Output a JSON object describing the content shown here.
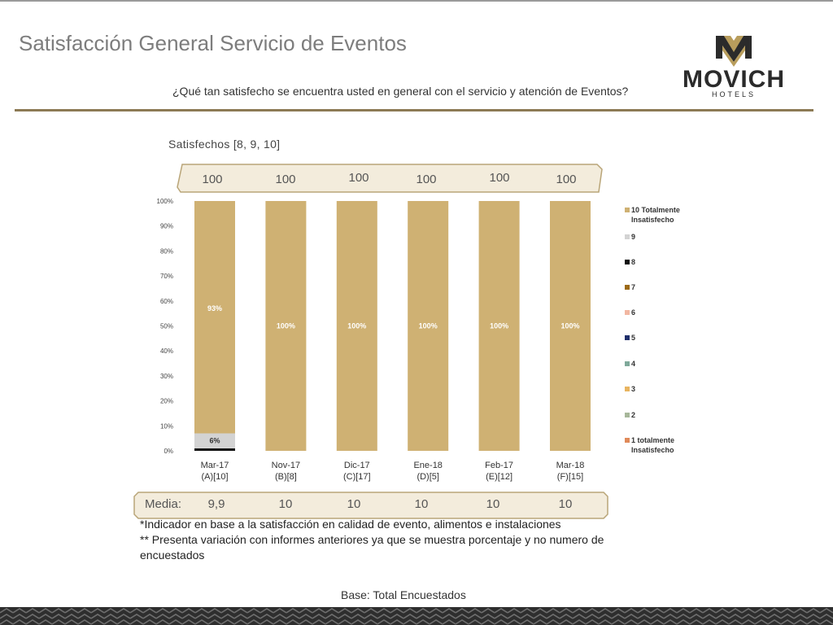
{
  "header": {
    "title": "Satisfacción General Servicio de Eventos",
    "question": "¿Qué tan satisfecho se encuentra usted en general con el servicio y atención de Eventos?",
    "logo_text": "MOVICH",
    "logo_sub": "HOTELS"
  },
  "subtitle": "Satisfechos [8, 9, 10]",
  "satisfied_values": [
    "100",
    "100",
    "100",
    "100",
    "100",
    "100"
  ],
  "media": {
    "label": "Media:",
    "values": [
      "9,9",
      "10",
      "10",
      "10",
      "10",
      "10"
    ]
  },
  "notes": [
    "*Indicador en base a la satisfacción en calidad de evento, alimentos e instalaciones",
    "** Presenta variación con informes anteriores ya que se muestra porcentaje y no numero de",
    "encuestados"
  ],
  "base": "Base: Total Encuestados",
  "chart_data": {
    "type": "bar",
    "stacked": true,
    "categories": [
      [
        "Mar-17",
        "(A)[10]"
      ],
      [
        "Nov-17",
        "(B)[8]"
      ],
      [
        "Dic-17",
        "(C)[17]"
      ],
      [
        "Ene-18",
        "(D)[5]"
      ],
      [
        "Feb-17",
        "(E)[12]"
      ],
      [
        "Mar-18",
        "(F)[15]"
      ]
    ],
    "ylim": [
      0,
      100
    ],
    "yticks": [
      "0%",
      "10%",
      "20%",
      "30%",
      "40%",
      "50%",
      "60%",
      "70%",
      "80%",
      "90%",
      "100%"
    ],
    "legend_position": "right",
    "series": [
      {
        "name": "1 totalmente Insatisfecho",
        "color": "#e08a5a",
        "values": [
          0,
          0,
          0,
          0,
          0,
          0
        ],
        "labels": [
          "",
          "",
          "",
          "",
          "",
          ""
        ]
      },
      {
        "name": "2",
        "color": "#a7b79a",
        "values": [
          0,
          0,
          0,
          0,
          0,
          0
        ],
        "labels": [
          "",
          "",
          "",
          "",
          "",
          ""
        ]
      },
      {
        "name": "3",
        "color": "#e8b460",
        "values": [
          0,
          0,
          0,
          0,
          0,
          0
        ],
        "labels": [
          "",
          "",
          "",
          "",
          "",
          ""
        ]
      },
      {
        "name": "4",
        "color": "#7fa99a",
        "values": [
          0,
          0,
          0,
          0,
          0,
          0
        ],
        "labels": [
          "",
          "",
          "",
          "",
          "",
          ""
        ]
      },
      {
        "name": "5",
        "color": "#1f2f6b",
        "values": [
          0,
          0,
          0,
          0,
          0,
          0
        ],
        "labels": [
          "",
          "",
          "",
          "",
          "",
          ""
        ]
      },
      {
        "name": "6",
        "color": "#f2b7a2",
        "values": [
          0,
          0,
          0,
          0,
          0,
          0
        ],
        "labels": [
          "",
          "",
          "",
          "",
          "",
          ""
        ]
      },
      {
        "name": "7",
        "color": "#9c6a17",
        "values": [
          0,
          0,
          0,
          0,
          0,
          0
        ],
        "labels": [
          "",
          "",
          "",
          "",
          "",
          ""
        ]
      },
      {
        "name": "8",
        "color": "#111111",
        "values": [
          1,
          0,
          0,
          0,
          0,
          0
        ],
        "labels": [
          "",
          "",
          "",
          "",
          "",
          ""
        ]
      },
      {
        "name": "9",
        "color": "#d3d3d3",
        "values": [
          6,
          0,
          0,
          0,
          0,
          0
        ],
        "labels": [
          "6%",
          "",
          "",
          "",
          "",
          ""
        ]
      },
      {
        "name": "10 Totalmente Insatisfecho",
        "color": "#cfb173",
        "values": [
          93,
          100,
          100,
          100,
          100,
          100
        ],
        "labels": [
          "93%",
          "100%",
          "100%",
          "100%",
          "100%",
          "100%"
        ]
      }
    ]
  }
}
